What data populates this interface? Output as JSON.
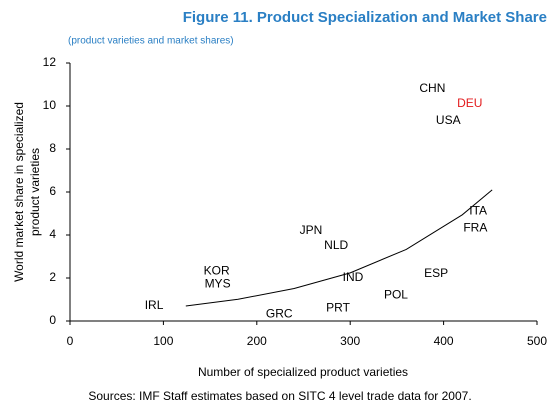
{
  "chart_data": {
    "type": "scatter",
    "title": "Figure 11. Product Specialization and Market Share",
    "subtitle": "(product varieties and market shares)",
    "xlabel": "Number of specialized product varieties",
    "ylabel": [
      "World market share in specialized",
      "product varieties"
    ],
    "source": "Sources: IMF Staff estimates based on SITC 4 level trade data for 2007.",
    "point_labels": [
      "CHN",
      "DEU",
      "USA",
      "ITA",
      "FRA",
      "ESP",
      "POL",
      "IND",
      "NLD",
      "JPN",
      "KOR",
      "MYS",
      "IRL",
      "GRC",
      "PRT"
    ],
    "x": [
      388,
      428,
      405,
      437,
      434,
      392,
      349,
      303,
      285,
      258,
      157,
      158,
      90,
      224,
      287
    ],
    "values": [
      10.8,
      10.1,
      9.3,
      5.1,
      4.3,
      2.2,
      1.2,
      2.0,
      3.5,
      4.2,
      2.3,
      1.7,
      0.7,
      0.3,
      0.6
    ],
    "label_colors": [
      "#000000",
      "#e31a1c",
      "#000000",
      "#000000",
      "#000000",
      "#000000",
      "#000000",
      "#000000",
      "#000000",
      "#000000",
      "#000000",
      "#000000",
      "#000000",
      "#000000",
      "#000000"
    ],
    "trendline": {
      "x": [
        124,
        180,
        240,
        300,
        360,
        420,
        452
      ],
      "values": [
        0.7,
        1.01,
        1.51,
        2.24,
        3.33,
        4.94,
        6.1
      ],
      "color": "#000000"
    },
    "title_color": "#2a7fc4",
    "xlim": [
      0,
      500
    ],
    "xticks": [
      0,
      100,
      200,
      300,
      400,
      500
    ],
    "ylim": [
      0,
      12
    ],
    "yticks": [
      0,
      2,
      4,
      6,
      8,
      10,
      12
    ],
    "grid": false
  }
}
